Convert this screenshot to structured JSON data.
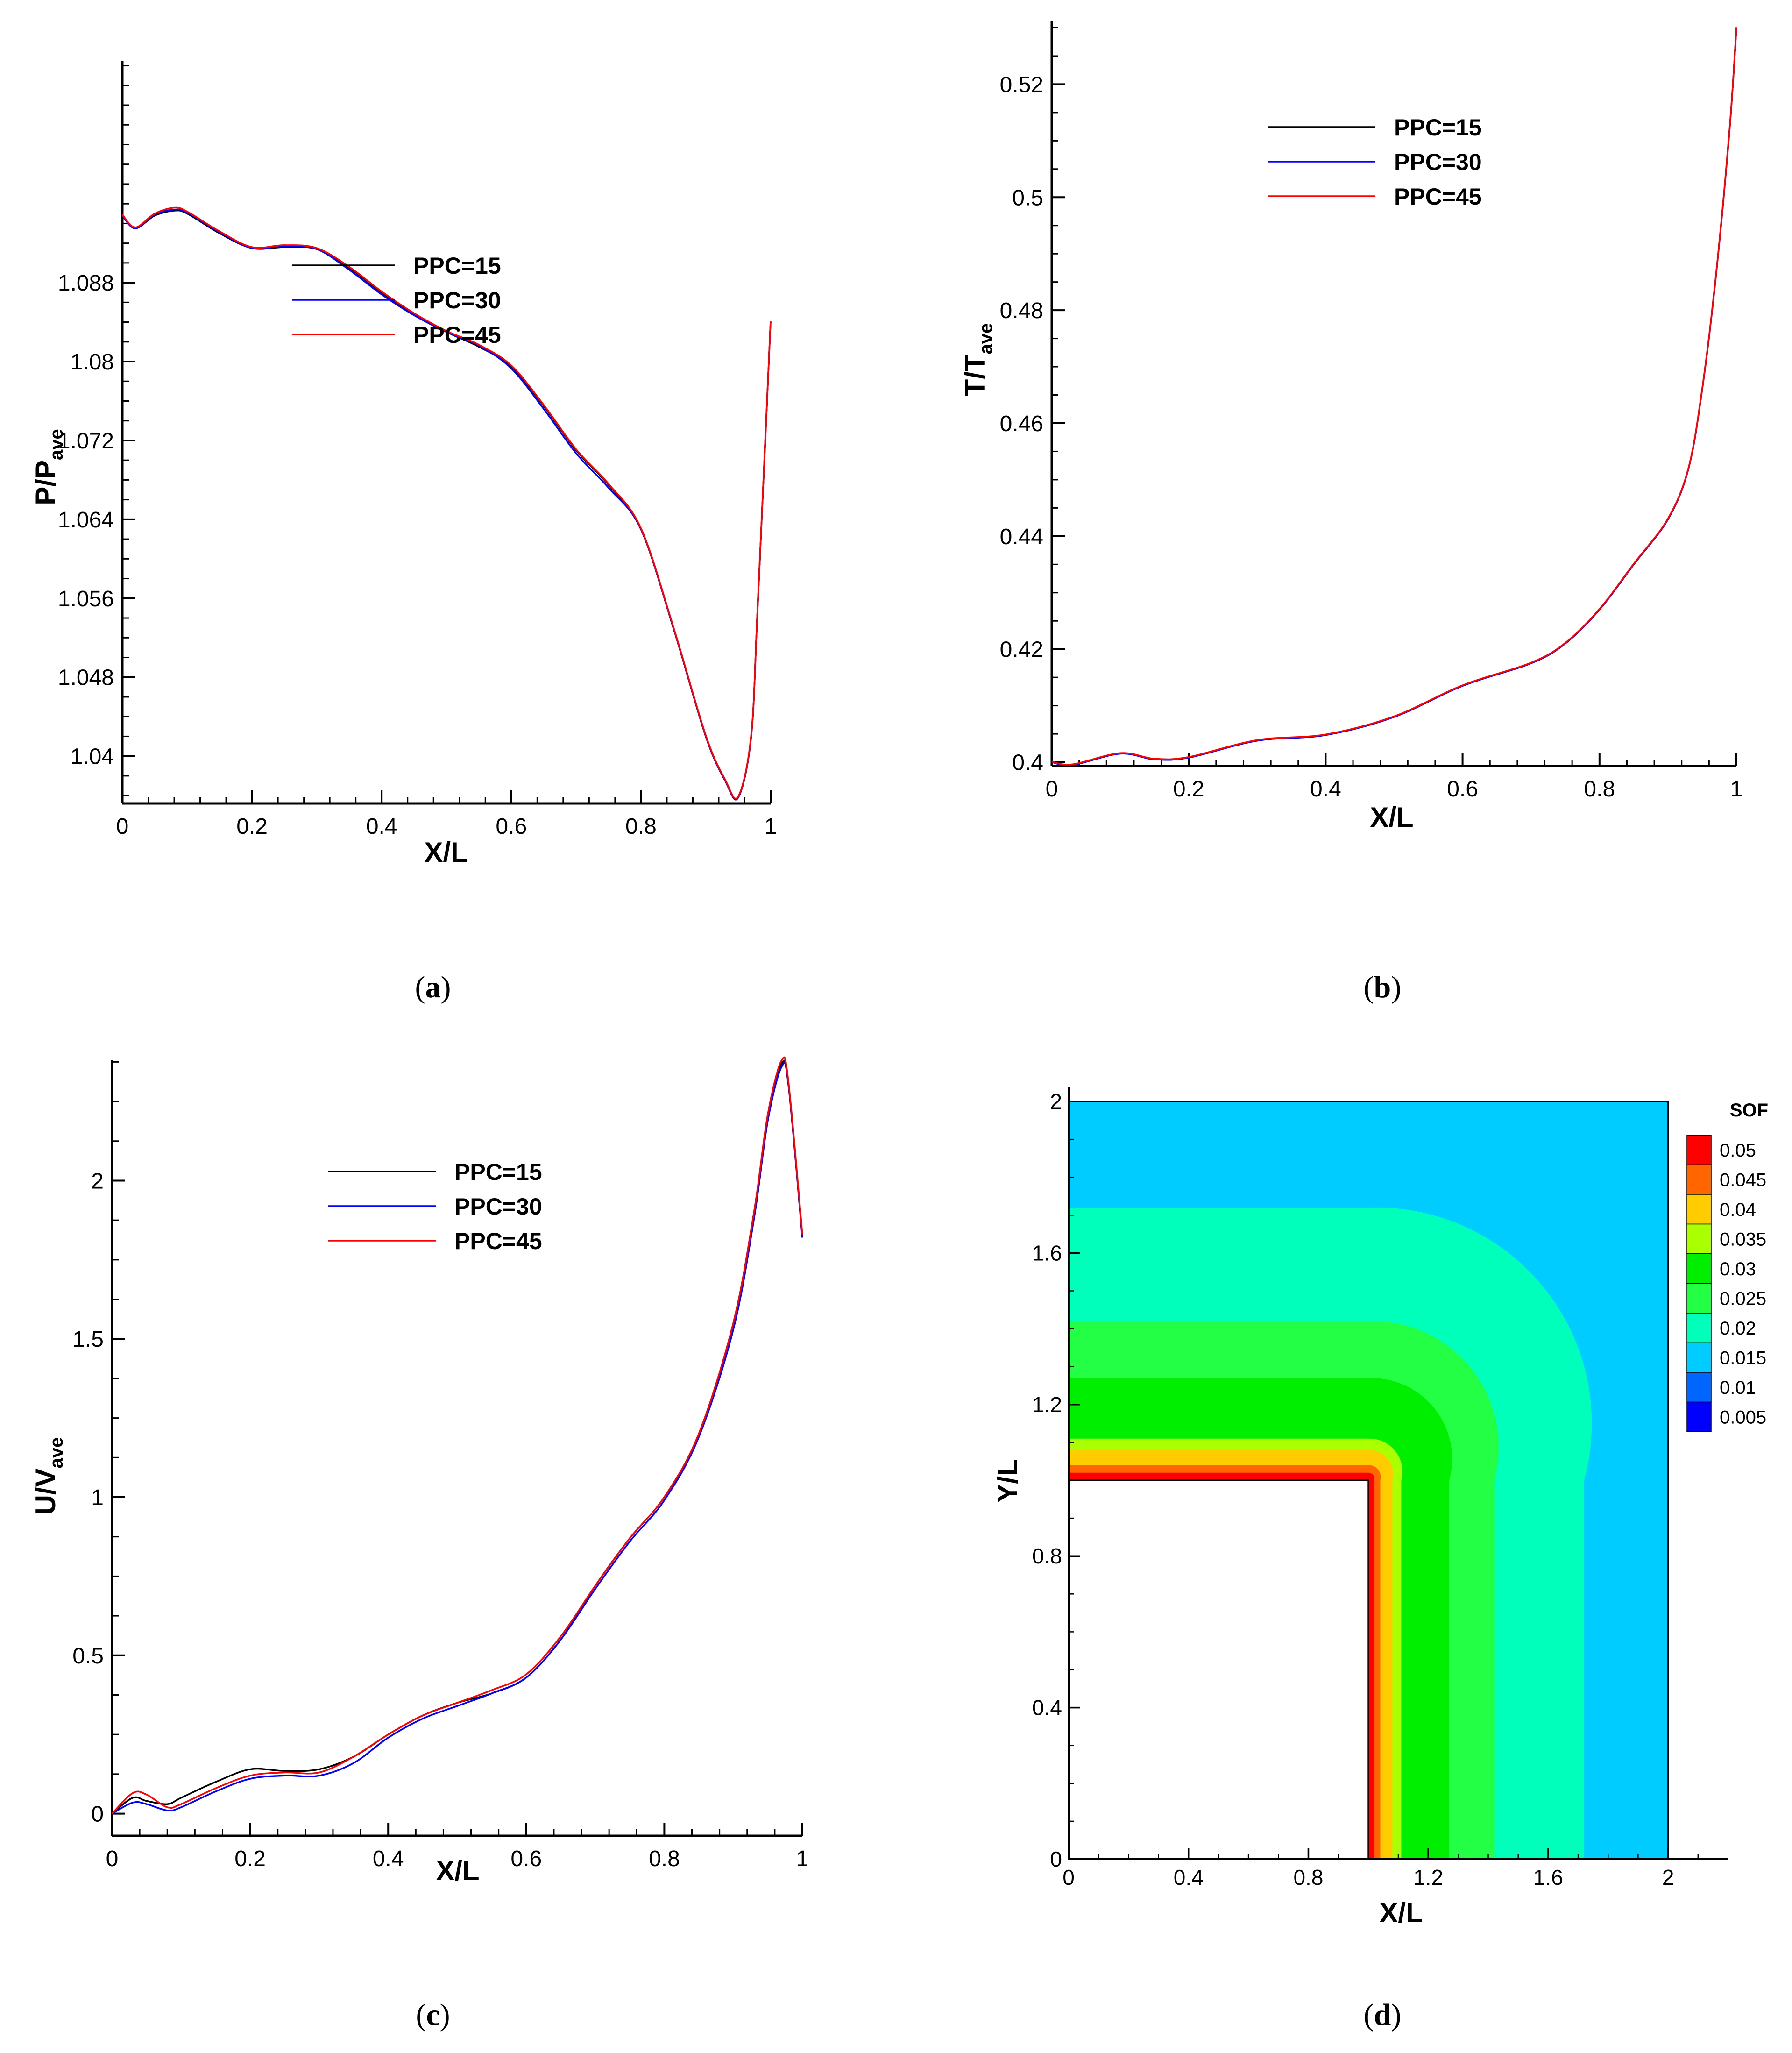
{
  "colors": {
    "ppc15": "#000000",
    "ppc30": "#0000ff",
    "ppc45": "#ff0000",
    "axis": "#000000"
  },
  "chart_data": [
    {
      "id": "a",
      "type": "line",
      "caption": "a",
      "xlabel": "X/L",
      "ylabel_main": "P/P",
      "ylabel_sub": "ave",
      "xlim": [
        0,
        1
      ],
      "ylim": [
        1.0352,
        1.1105
      ],
      "xticks": [
        0,
        0.2,
        0.4,
        0.6,
        0.8,
        1
      ],
      "xtick_labels": [
        "0",
        "0.2",
        "0.4",
        "0.6",
        "0.8",
        "1"
      ],
      "yticks": [
        1.04,
        1.048,
        1.056,
        1.064,
        1.072,
        1.08,
        1.088
      ],
      "ytick_labels": [
        "1.04",
        "1.048",
        "1.056",
        "1.064",
        "1.072",
        "1.08",
        "1.088"
      ],
      "legend": [
        "PPC=15",
        "PPC=30",
        "PPC=45"
      ],
      "series": [
        {
          "name": "PPC=15",
          "x": [
            0,
            0.02,
            0.05,
            0.08,
            0.1,
            0.15,
            0.2,
            0.25,
            0.3,
            0.35,
            0.4,
            0.45,
            0.5,
            0.55,
            0.6,
            0.65,
            0.7,
            0.75,
            0.8,
            0.85,
            0.9,
            0.93,
            0.95,
            0.97,
            0.98,
            1.0
          ],
          "y": [
            1.0948,
            1.0935,
            1.0948,
            1.0953,
            1.095,
            1.093,
            1.0915,
            1.0916,
            1.0914,
            1.0895,
            1.087,
            1.0848,
            1.083,
            1.0815,
            1.0795,
            1.0755,
            1.071,
            1.0675,
            1.063,
            1.053,
            1.042,
            1.0375,
            1.0358,
            1.042,
            1.055,
            1.084
          ]
        },
        {
          "name": "PPC=30",
          "x": [
            0,
            0.02,
            0.05,
            0.08,
            0.1,
            0.15,
            0.2,
            0.25,
            0.3,
            0.35,
            0.4,
            0.45,
            0.5,
            0.55,
            0.6,
            0.65,
            0.7,
            0.75,
            0.8,
            0.85,
            0.9,
            0.93,
            0.95,
            0.97,
            0.98,
            1.0
          ],
          "y": [
            1.0948,
            1.0935,
            1.0949,
            1.0954,
            1.0951,
            1.0931,
            1.0915,
            1.0917,
            1.0914,
            1.0893,
            1.0868,
            1.0847,
            1.083,
            1.0816,
            1.0793,
            1.0752,
            1.0707,
            1.0672,
            1.063,
            1.053,
            1.042,
            1.0375,
            1.0358,
            1.042,
            1.055,
            1.084
          ]
        },
        {
          "name": "PPC=45",
          "x": [
            0,
            0.02,
            0.05,
            0.08,
            0.1,
            0.15,
            0.2,
            0.25,
            0.3,
            0.35,
            0.4,
            0.45,
            0.5,
            0.55,
            0.6,
            0.65,
            0.7,
            0.75,
            0.8,
            0.85,
            0.9,
            0.93,
            0.95,
            0.97,
            0.98,
            1.0
          ],
          "y": [
            1.0949,
            1.0936,
            1.095,
            1.0956,
            1.0952,
            1.0932,
            1.0916,
            1.0918,
            1.0915,
            1.0896,
            1.0871,
            1.0849,
            1.0831,
            1.0817,
            1.0796,
            1.0756,
            1.0711,
            1.0676,
            1.0631,
            1.0531,
            1.0421,
            1.0376,
            1.0359,
            1.0421,
            1.0551,
            1.0841
          ]
        }
      ]
    },
    {
      "id": "b",
      "type": "line",
      "caption": "b",
      "xlabel": "X/L",
      "ylabel_main": "T/T",
      "ylabel_sub": "ave",
      "xlim": [
        0,
        1
      ],
      "ylim": [
        0.3993,
        0.5312
      ],
      "xticks": [
        0,
        0.2,
        0.4,
        0.6,
        0.8,
        1
      ],
      "xtick_labels": [
        "0",
        "0.2",
        "0.4",
        "0.6",
        "0.8",
        "1"
      ],
      "yticks": [
        0.4,
        0.42,
        0.44,
        0.46,
        0.48,
        0.5,
        0.52
      ],
      "ytick_labels": [
        "0.4",
        "0.42",
        "0.44",
        "0.46",
        "0.48",
        "0.5",
        "0.52"
      ],
      "legend": [
        "PPC=15",
        "PPC=30",
        "PPC=45"
      ],
      "series": [
        {
          "name": "PPC=15",
          "x": [
            0,
            0.03,
            0.1,
            0.15,
            0.2,
            0.3,
            0.4,
            0.5,
            0.6,
            0.7,
            0.75,
            0.8,
            0.85,
            0.9,
            0.93,
            0.95,
            0.97,
            0.99,
            1.0
          ],
          "y": [
            0.4,
            0.3995,
            0.4015,
            0.4005,
            0.4008,
            0.4038,
            0.4048,
            0.408,
            0.4135,
            0.4175,
            0.421,
            0.427,
            0.435,
            0.443,
            0.452,
            0.466,
            0.486,
            0.512,
            0.53
          ]
        },
        {
          "name": "PPC=30",
          "x": [
            0,
            0.03,
            0.1,
            0.15,
            0.2,
            0.3,
            0.4,
            0.5,
            0.6,
            0.7,
            0.75,
            0.8,
            0.85,
            0.9,
            0.93,
            0.95,
            0.97,
            0.99,
            1.0
          ],
          "y": [
            0.4,
            0.3995,
            0.4015,
            0.4005,
            0.4008,
            0.4038,
            0.4048,
            0.408,
            0.4135,
            0.4175,
            0.421,
            0.427,
            0.435,
            0.443,
            0.452,
            0.466,
            0.486,
            0.512,
            0.53
          ]
        },
        {
          "name": "PPC=45",
          "x": [
            0,
            0.03,
            0.1,
            0.15,
            0.2,
            0.3,
            0.4,
            0.5,
            0.6,
            0.7,
            0.75,
            0.8,
            0.85,
            0.9,
            0.93,
            0.95,
            0.97,
            0.99,
            1.0
          ],
          "y": [
            0.4001,
            0.3996,
            0.4016,
            0.4006,
            0.4009,
            0.4039,
            0.4049,
            0.4081,
            0.4136,
            0.4176,
            0.4211,
            0.4271,
            0.4351,
            0.4431,
            0.4521,
            0.4661,
            0.4861,
            0.5121,
            0.5301
          ]
        }
      ]
    },
    {
      "id": "c",
      "type": "line",
      "caption": "c",
      "xlabel": "X/L",
      "ylabel_main": "U/V",
      "ylabel_sub": "ave",
      "xlim": [
        0,
        1
      ],
      "ylim": [
        -0.07,
        2.38
      ],
      "xticks": [
        0,
        0.2,
        0.4,
        0.6,
        0.8,
        1
      ],
      "xtick_labels": [
        "0",
        "0.2",
        "0.4",
        "0.6",
        "0.8",
        "1"
      ],
      "yticks": [
        0,
        0.5,
        1,
        1.5,
        2
      ],
      "ytick_labels": [
        "0",
        "0.5",
        "1",
        "1.5",
        "2"
      ],
      "legend": [
        "PPC=15",
        "PPC=30",
        "PPC=45"
      ],
      "series": [
        {
          "name": "PPC=15",
          "x": [
            0,
            0.03,
            0.05,
            0.08,
            0.1,
            0.15,
            0.2,
            0.25,
            0.3,
            0.35,
            0.4,
            0.45,
            0.5,
            0.55,
            0.6,
            0.65,
            0.7,
            0.75,
            0.8,
            0.85,
            0.9,
            0.93,
            0.95,
            0.97,
            0.98,
            1.0
          ],
          "y": [
            0.0,
            0.05,
            0.04,
            0.03,
            0.05,
            0.1,
            0.14,
            0.135,
            0.14,
            0.18,
            0.25,
            0.31,
            0.35,
            0.38,
            0.43,
            0.55,
            0.72,
            0.87,
            1.0,
            1.2,
            1.55,
            1.9,
            2.2,
            2.37,
            2.3,
            1.82
          ]
        },
        {
          "name": "PPC=30",
          "x": [
            0,
            0.03,
            0.05,
            0.08,
            0.1,
            0.15,
            0.2,
            0.25,
            0.3,
            0.35,
            0.4,
            0.45,
            0.5,
            0.55,
            0.6,
            0.65,
            0.7,
            0.75,
            0.8,
            0.85,
            0.9,
            0.93,
            0.95,
            0.97,
            0.98,
            1.0
          ],
          "y": [
            0.0,
            0.035,
            0.03,
            0.01,
            0.02,
            0.07,
            0.11,
            0.12,
            0.12,
            0.16,
            0.24,
            0.3,
            0.34,
            0.38,
            0.43,
            0.55,
            0.71,
            0.86,
            0.99,
            1.19,
            1.53,
            1.88,
            2.19,
            2.36,
            2.3,
            1.82
          ]
        },
        {
          "name": "PPC=45",
          "x": [
            0,
            0.03,
            0.05,
            0.08,
            0.1,
            0.15,
            0.2,
            0.25,
            0.3,
            0.35,
            0.4,
            0.45,
            0.5,
            0.55,
            0.6,
            0.65,
            0.7,
            0.75,
            0.8,
            0.85,
            0.9,
            0.93,
            0.95,
            0.97,
            0.98,
            1.0
          ],
          "y": [
            0.0,
            0.065,
            0.06,
            0.02,
            0.03,
            0.08,
            0.12,
            0.13,
            0.13,
            0.18,
            0.25,
            0.31,
            0.35,
            0.39,
            0.44,
            0.56,
            0.72,
            0.87,
            1.0,
            1.2,
            1.55,
            1.9,
            2.21,
            2.38,
            2.31,
            1.83
          ]
        }
      ]
    },
    {
      "id": "d",
      "type": "heatmap",
      "caption": "d",
      "xlabel": "X/L",
      "ylabel": "Y/L",
      "xlim": [
        0,
        2.2
      ],
      "ylim": [
        0,
        2
      ],
      "xticks": [
        0,
        0.4,
        0.8,
        1.2,
        1.6,
        2
      ],
      "xtick_labels": [
        "0",
        "0.4",
        "0.8",
        "1.2",
        "1.6",
        "2"
      ],
      "yticks": [
        0,
        0.4,
        0.8,
        1.2,
        1.6,
        2
      ],
      "ytick_labels": [
        "0",
        "0.4",
        "0.8",
        "1.2",
        "1.6",
        "2"
      ],
      "domain": {
        "x": [
          0,
          2
        ],
        "y": [
          0,
          2
        ]
      },
      "solid_block": {
        "x": [
          0,
          1
        ],
        "y": [
          0,
          1
        ]
      },
      "legend_title": "SOF",
      "levels": [
        {
          "label": "0.05",
          "color": "#ff0000"
        },
        {
          "label": "0.045",
          "color": "#ff6600"
        },
        {
          "label": "0.04",
          "color": "#ffcc00"
        },
        {
          "label": "0.035",
          "color": "#aaff00"
        },
        {
          "label": "0.03",
          "color": "#00ee00"
        },
        {
          "label": "0.025",
          "color": "#22ff44"
        },
        {
          "label": "0.02",
          "color": "#00ffbb"
        },
        {
          "label": "0.015",
          "color": "#00ccff"
        },
        {
          "label": "0.01",
          "color": "#0066ff"
        },
        {
          "label": "0.005",
          "color": "#0000ff"
        }
      ],
      "contour_bands": [
        {
          "value": 0.015,
          "color": "#00ccff",
          "outer": null
        },
        {
          "value": 0.02,
          "color": "#00ffbb",
          "outer": 0.72
        },
        {
          "value": 0.025,
          "color": "#22ff44",
          "outer": 0.42
        },
        {
          "value": 0.03,
          "color": "#00ee00",
          "outer": 0.27
        },
        {
          "value": 0.035,
          "color": "#aaff00",
          "outer": 0.11
        },
        {
          "value": 0.04,
          "color": "#ffcc00",
          "outer": 0.08
        },
        {
          "value": 0.045,
          "color": "#ff6600",
          "outer": 0.04
        },
        {
          "value": 0.05,
          "color": "#ff0000",
          "outer": 0.02
        }
      ]
    }
  ]
}
